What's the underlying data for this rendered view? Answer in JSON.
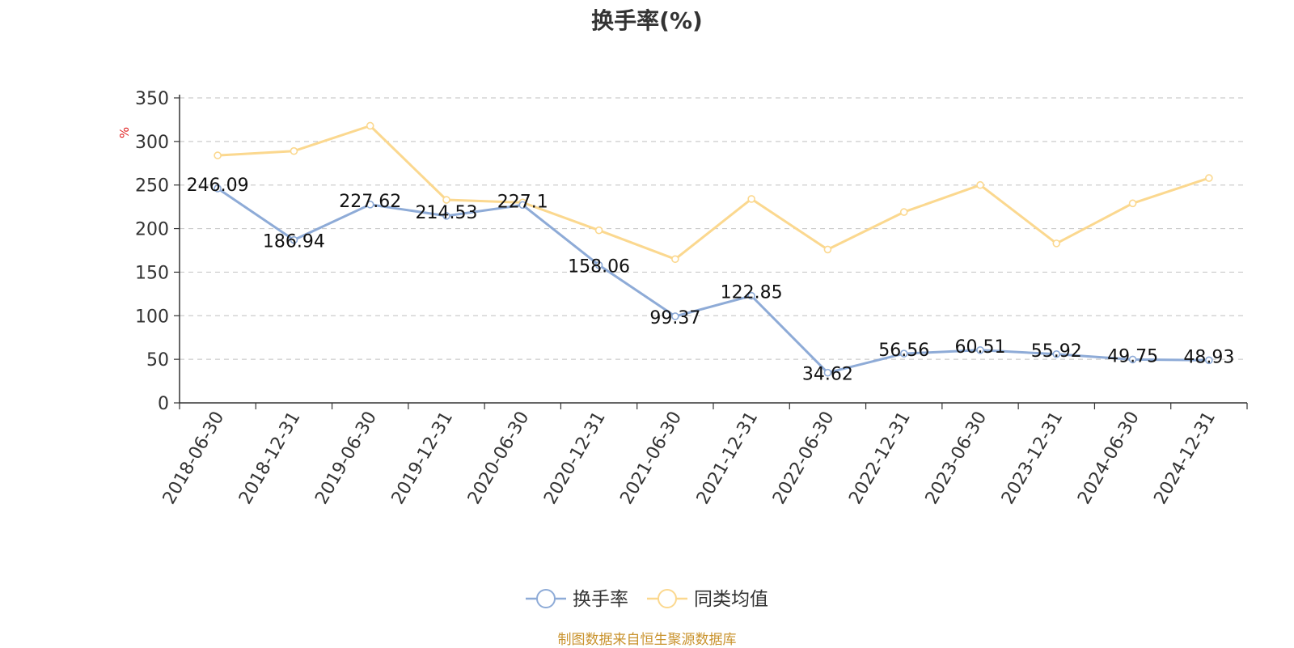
{
  "chart_data": {
    "type": "line",
    "title": "换手率(%)",
    "ylabel": "%",
    "xlabel": "",
    "ylim": [
      0,
      350
    ],
    "yticks": [
      0,
      50,
      100,
      150,
      200,
      250,
      300,
      350
    ],
    "grid": true,
    "legend_position": "bottom-center",
    "categories": [
      "2018-06-30",
      "2018-12-31",
      "2019-06-30",
      "2019-12-31",
      "2020-06-30",
      "2020-12-31",
      "2021-06-30",
      "2021-12-31",
      "2022-06-30",
      "2022-12-31",
      "2023-06-30",
      "2023-12-31",
      "2024-06-30",
      "2024-12-31"
    ],
    "series": [
      {
        "name": "换手率",
        "color": "#8eabd7",
        "values": [
          246.09,
          186.94,
          227.62,
          214.53,
          227.1,
          158.06,
          99.37,
          122.85,
          34.62,
          56.56,
          60.51,
          55.92,
          49.75,
          48.93
        ],
        "data_labels": [
          "246.09",
          "186.94",
          "227.62",
          "214.53",
          "227.1",
          "158.06",
          "99.37",
          "122.85",
          "34.62",
          "56.56",
          "60.51",
          "55.92",
          "49.75",
          "48.93"
        ]
      },
      {
        "name": "同类均值",
        "color": "#fbd88f",
        "values": [
          284,
          289,
          318,
          233,
          230,
          198,
          165,
          234,
          176,
          219,
          250,
          183,
          229,
          258
        ]
      }
    ]
  },
  "source_note": "制图数据来自恒生聚源数据库",
  "source_color": "#c9932e"
}
